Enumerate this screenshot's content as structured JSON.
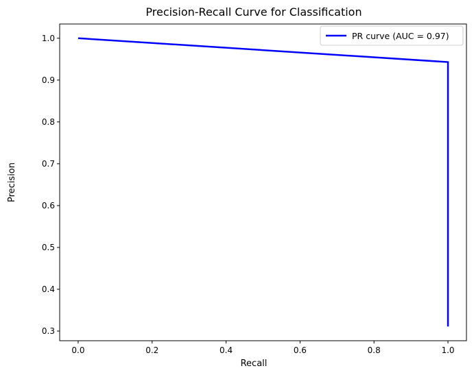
{
  "chart_data": {
    "type": "line",
    "title": "Precision-Recall Curve for Classification",
    "xlabel": "Recall",
    "ylabel": "Precision",
    "xlim": [
      -0.05,
      1.05
    ],
    "ylim": [
      0.277,
      1.034
    ],
    "xticks": [
      0.0,
      0.2,
      0.4,
      0.6,
      0.8,
      1.0
    ],
    "xtick_labels": [
      "0.0",
      "0.2",
      "0.4",
      "0.6",
      "0.8",
      "1.0"
    ],
    "yticks": [
      0.3,
      0.4,
      0.5,
      0.6,
      0.7,
      0.8,
      0.9,
      1.0
    ],
    "ytick_labels": [
      "0.3",
      "0.4",
      "0.5",
      "0.6",
      "0.7",
      "0.8",
      "0.9",
      "1.0"
    ],
    "grid": false,
    "legend_position": "top-right",
    "series": [
      {
        "name": "PR curve (AUC = 0.97)",
        "color": "#0000ff",
        "x": [
          0.0,
          1.0,
          1.0
        ],
        "y": [
          1.0,
          0.943,
          0.311
        ]
      }
    ]
  }
}
